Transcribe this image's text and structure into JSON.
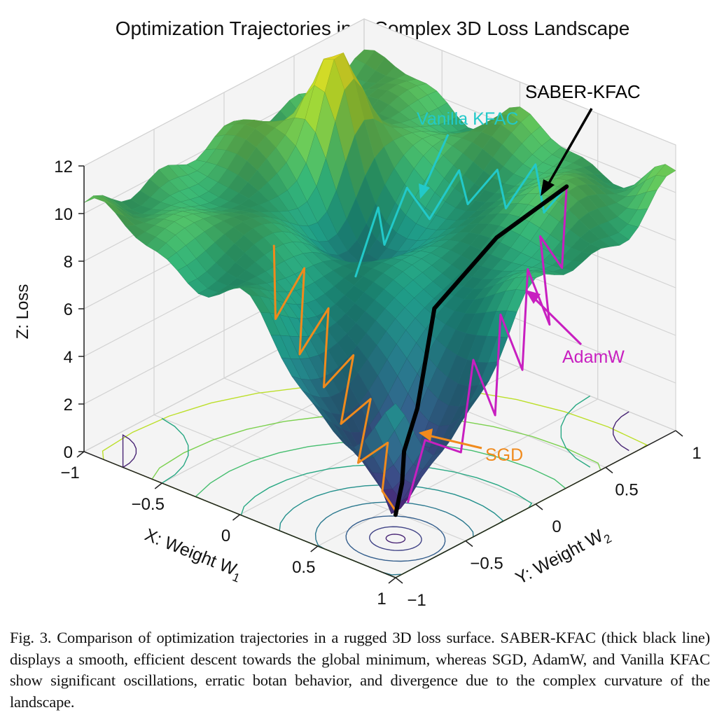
{
  "chart_data": {
    "type": "surface",
    "title": "Optimization Trajectories in a Complex 3D Loss Landscape",
    "xlabel": "X: Weight W",
    "xlabel_sub": "1",
    "ylabel": "Y: Weight W",
    "ylabel_sub": "2",
    "zlabel": "Z: Loss",
    "xlim": [
      -1,
      1
    ],
    "ylim": [
      -1,
      1
    ],
    "zlim": [
      0,
      12
    ],
    "xticks": [
      "-1",
      "-0.5",
      "0",
      "0.5",
      "1"
    ],
    "yticks": [
      "-1",
      "-0.5",
      "0",
      "0.5",
      "1"
    ],
    "zticks": [
      "0",
      "2",
      "4",
      "6",
      "8",
      "10",
      "12"
    ],
    "colormap": "viridis",
    "grid": true,
    "floor_contours": true,
    "series": [
      {
        "name": "SABER-KFAC",
        "color": "#000000",
        "points": [
          [
            0.3,
            1.0,
            8.4
          ],
          [
            0.3,
            0.5,
            7.8
          ],
          [
            0.35,
            0.0,
            6.5
          ],
          [
            0.6,
            -0.4,
            4.2
          ],
          [
            0.65,
            -0.55,
            3.0
          ],
          [
            0.7,
            -0.62,
            2.0
          ],
          [
            0.73,
            -0.7,
            1.0
          ]
        ]
      },
      {
        "name": "Vanilla KFAC",
        "color": "#22c9c9",
        "points": [
          [
            0.3,
            1.0,
            8.4
          ],
          [
            0.2,
            0.95,
            7.2
          ],
          [
            0.1,
            1.0,
            8.8
          ],
          [
            0.0,
            0.9,
            7.0
          ],
          [
            -0.1,
            0.95,
            8.2
          ],
          [
            -0.2,
            0.85,
            6.8
          ],
          [
            -0.3,
            0.9,
            7.8
          ],
          [
            -0.4,
            0.8,
            5.8
          ],
          [
            -0.5,
            0.75,
            7.0
          ],
          [
            -0.6,
            0.7,
            4.5
          ],
          [
            -0.55,
            0.6,
            6.5
          ],
          [
            -0.65,
            0.55,
            3.5
          ]
        ]
      },
      {
        "name": "AdamW",
        "color": "#c81fc0",
        "points": [
          [
            0.3,
            1.0,
            8.4
          ],
          [
            0.45,
            0.8,
            6.0
          ],
          [
            0.4,
            0.7,
            7.5
          ],
          [
            0.55,
            0.6,
            4.5
          ],
          [
            0.5,
            0.5,
            7.0
          ],
          [
            0.6,
            0.35,
            3.5
          ],
          [
            0.55,
            0.25,
            6.0
          ],
          [
            0.65,
            0.1,
            2.5
          ],
          [
            0.6,
            0.0,
            5.0
          ],
          [
            0.7,
            -0.2,
            2.0
          ],
          [
            0.65,
            -0.4,
            3.0
          ],
          [
            0.72,
            -0.6,
            1.2
          ]
        ]
      },
      {
        "name": "SGD",
        "color": "#f08a1c",
        "points": [
          [
            -0.5,
            -0.2,
            7.5
          ],
          [
            -0.4,
            -0.3,
            5.0
          ],
          [
            -0.35,
            -0.15,
            6.8
          ],
          [
            -0.2,
            -0.35,
            4.2
          ],
          [
            -0.15,
            -0.2,
            5.8
          ],
          [
            0.0,
            -0.4,
            3.5
          ],
          [
            0.1,
            -0.3,
            4.8
          ],
          [
            0.2,
            -0.5,
            2.8
          ],
          [
            0.3,
            -0.4,
            3.8
          ],
          [
            0.4,
            -0.6,
            2.0
          ],
          [
            0.5,
            -0.5,
            2.8
          ],
          [
            0.6,
            -0.65,
            1.5
          ],
          [
            0.72,
            -0.68,
            1.0
          ]
        ]
      }
    ]
  },
  "caption": "Fig. 3.  Comparison of optimization trajectories in a rugged 3D loss surface. SABER-KFAC (thick black line) displays a smooth, efficient descent towards the global minimum, whereas SGD, AdamW, and Vanilla KFAC show significant oscillations, erratic botan behavior, and divergence due to the complex curvature of the landscape."
}
